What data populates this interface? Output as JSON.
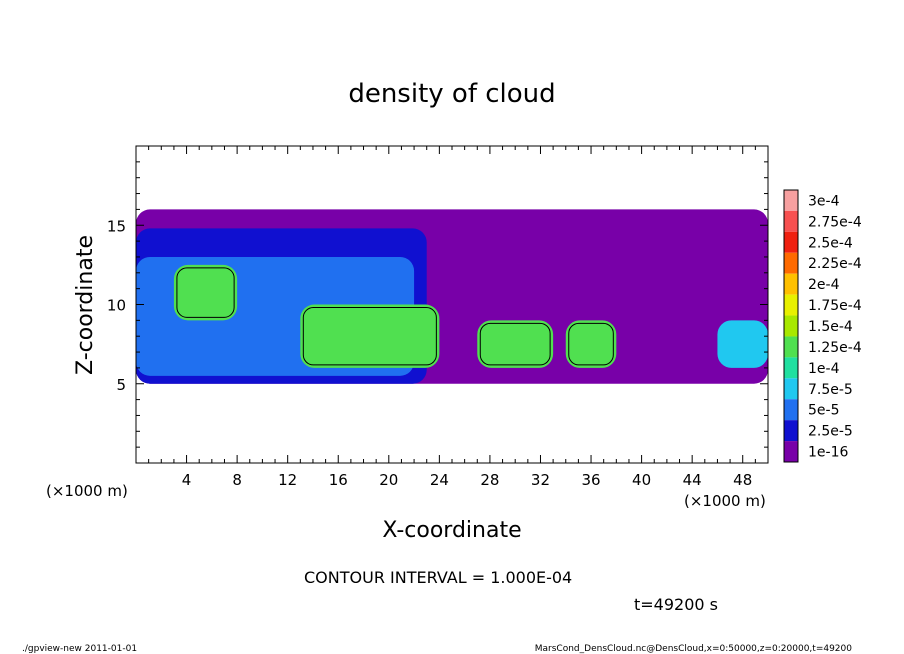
{
  "chart_data": {
    "type": "heatmap",
    "title": "density of cloud",
    "xlabel": "X-coordinate",
    "ylabel": "Z-coordinate",
    "x_unit_label": "(×1000 m)",
    "z_unit_label": "(×1000 m)",
    "xlim": [
      0,
      50
    ],
    "ylim": [
      0,
      20
    ],
    "x_ticks": [
      4,
      8,
      12,
      16,
      20,
      24,
      28,
      32,
      36,
      40,
      44,
      48
    ],
    "y_ticks": [
      5,
      10,
      15
    ],
    "colorbar": {
      "levels": [
        "3e-4",
        "2.75e-4",
        "2.5e-4",
        "2.25e-4",
        "2e-4",
        "1.75e-4",
        "1.5e-4",
        "1.25e-4",
        "1e-4",
        "7.5e-5",
        "5e-5",
        "2.5e-5",
        "1e-16"
      ],
      "colors": [
        "#f7a0a0",
        "#f75050",
        "#f02010",
        "#ff6a00",
        "#ffc000",
        "#e8f000",
        "#a8e800",
        "#50e050",
        "#20e0a0",
        "#20c8f0",
        "#2070f0",
        "#1010d0",
        "#7800a8"
      ]
    },
    "contour_interval_text": "CONTOUR INTERVAL = 1.000E-04",
    "time_text": "t=49200 s",
    "regions": [
      {
        "x": [
          0,
          50
        ],
        "z": [
          5,
          16
        ],
        "level": "1e-16"
      },
      {
        "x": [
          0,
          23
        ],
        "z": [
          5,
          14.8
        ],
        "level": "2.5e-5"
      },
      {
        "x": [
          0,
          22
        ],
        "z": [
          5.5,
          13
        ],
        "level": "5e-5"
      },
      {
        "x": [
          3,
          8
        ],
        "z": [
          9,
          12.5
        ],
        "level": "1.25e-4"
      },
      {
        "x": [
          13,
          24
        ],
        "z": [
          6,
          10
        ],
        "level": "1.25e-4"
      },
      {
        "x": [
          27,
          33
        ],
        "z": [
          6,
          9
        ],
        "level": "1.25e-4"
      },
      {
        "x": [
          34,
          38
        ],
        "z": [
          6,
          9
        ],
        "level": "1.25e-4"
      },
      {
        "x": [
          46,
          50
        ],
        "z": [
          6,
          9
        ],
        "level": "7.5e-5"
      }
    ]
  },
  "footer": {
    "left": "./gpview-new   2011-01-01",
    "right": "MarsCond_DensCloud.nc@DensCloud,x=0:50000,z=0:20000,t=49200"
  }
}
